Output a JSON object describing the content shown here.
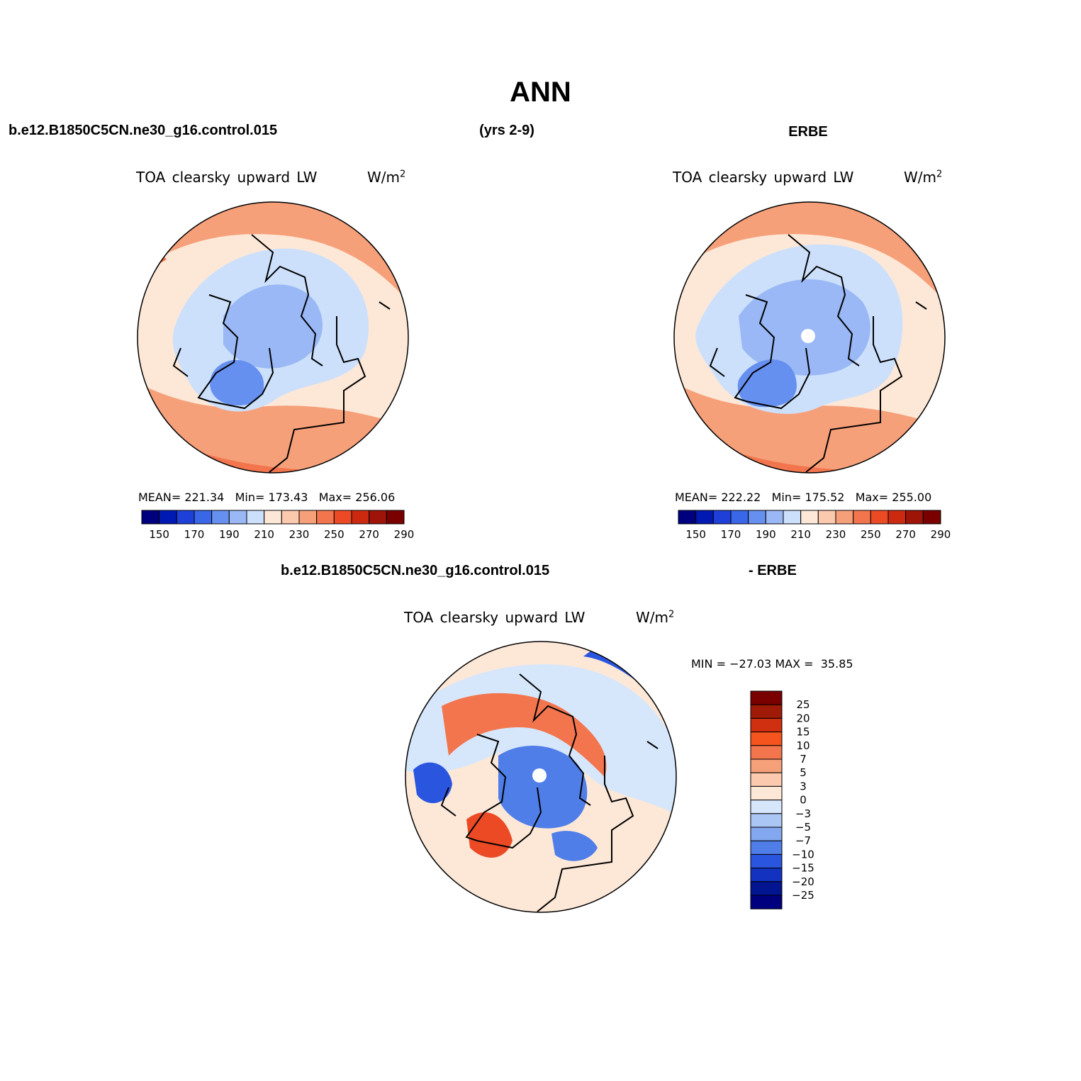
{
  "header": {
    "title": "ANN",
    "case_name": "b.e12.B1850C5CN.ne30_g16.control.015",
    "years": "(yrs 2-9)",
    "obs_name": "ERBE"
  },
  "panel_model": {
    "variable": "TOA clearsky upward LW",
    "units": "W/m",
    "units_sup": "2",
    "stats": "MEAN= 221.34   Min= 173.43   Max= 256.06",
    "colorbar_labels": [
      "150",
      "170",
      "190",
      "210",
      "230",
      "250",
      "270",
      "290"
    ]
  },
  "panel_obs": {
    "variable": "TOA clearsky upward LW",
    "units": "W/m",
    "units_sup": "2",
    "stats": "MEAN= 222.22   Min= 175.52   Max= 255.00",
    "colorbar_labels": [
      "150",
      "170",
      "190",
      "210",
      "230",
      "250",
      "270",
      "290"
    ]
  },
  "diff_header": {
    "case_name": "b.e12.B1850C5CN.ne30_g16.control.015",
    "minus_obs": "- ERBE"
  },
  "panel_diff": {
    "variable": "TOA clearsky upward LW",
    "units": "W/m",
    "units_sup": "2",
    "stats": "MIN = −27.03 MAX =  35.85",
    "colorbar_labels": [
      "25",
      "20",
      "15",
      "10",
      "7",
      "5",
      "3",
      "0",
      "−3",
      "−5",
      "−7",
      "−10",
      "−15",
      "−20",
      "−25"
    ]
  },
  "colors": {
    "abs_scale": [
      "#00007f",
      "#0019b3",
      "#1e40d9",
      "#3a66e8",
      "#6690f0",
      "#99b8f5",
      "#cce0fb",
      "#fde8d8",
      "#fbc9ae",
      "#f6a07a",
      "#f2754e",
      "#ec4a25",
      "#cc2a10",
      "#9f1408",
      "#7a0000"
    ],
    "diff_scale": [
      "#7a0000",
      "#a01a08",
      "#d0300f",
      "#f5541e",
      "#f2754e",
      "#f6a07a",
      "#fbc9ae",
      "#fde8d8",
      "#d6e6fb",
      "#aac6f5",
      "#84a8ef",
      "#4f7ee8",
      "#2a55de",
      "#1332c0",
      "#00158f",
      "#00007f"
    ],
    "coast": "#000000"
  }
}
